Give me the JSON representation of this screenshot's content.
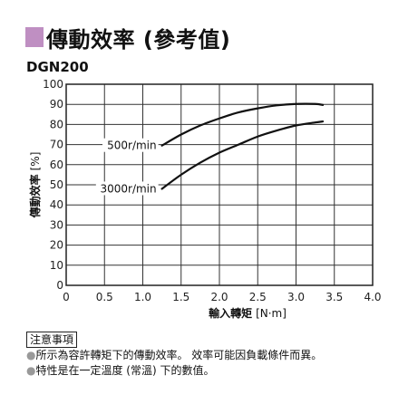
{
  "header": {
    "title": "傳動效率 (參考值)",
    "accent_color": "#bf8fc2",
    "model": "DGN200"
  },
  "chart_data": {
    "type": "line",
    "xlabel": "輸入轉矩",
    "xunit": "[N·m]",
    "ylabel": "傳動效率",
    "yunit": "[%]",
    "xlim": [
      0,
      4.0
    ],
    "ylim": [
      0,
      100
    ],
    "xticks": [
      "0",
      "0.5",
      "1.0",
      "1.5",
      "2.0",
      "2.5",
      "3.0",
      "3.5",
      "4.0"
    ],
    "yticks": [
      "0",
      "10",
      "20",
      "30",
      "40",
      "50",
      "60",
      "70",
      "80",
      "90",
      "100"
    ],
    "grid": true,
    "series": [
      {
        "name": "500r/min",
        "x": [
          1.25,
          1.5,
          1.75,
          2.0,
          2.25,
          2.5,
          2.75,
          3.0,
          3.25,
          3.35
        ],
        "y": [
          69.5,
          75,
          79.5,
          83,
          86,
          88,
          89.5,
          90.2,
          90.2,
          89.7
        ],
        "label_at": [
          1.25,
          69.5
        ]
      },
      {
        "name": "3000r/min",
        "x": [
          1.25,
          1.5,
          1.75,
          2.0,
          2.25,
          2.5,
          2.75,
          3.0,
          3.25,
          3.35
        ],
        "y": [
          48,
          55,
          61,
          66,
          70,
          74,
          77,
          79.5,
          81,
          81.5
        ],
        "label_at": [
          1.25,
          48
        ]
      }
    ]
  },
  "notes": {
    "heading": "注意事項",
    "bullet": "●",
    "lines": [
      "所示為容許轉矩下的傳動效率。 效率可能因負載條件而異。",
      "特性是在一定溫度 (常溫) 下的數值。"
    ]
  }
}
